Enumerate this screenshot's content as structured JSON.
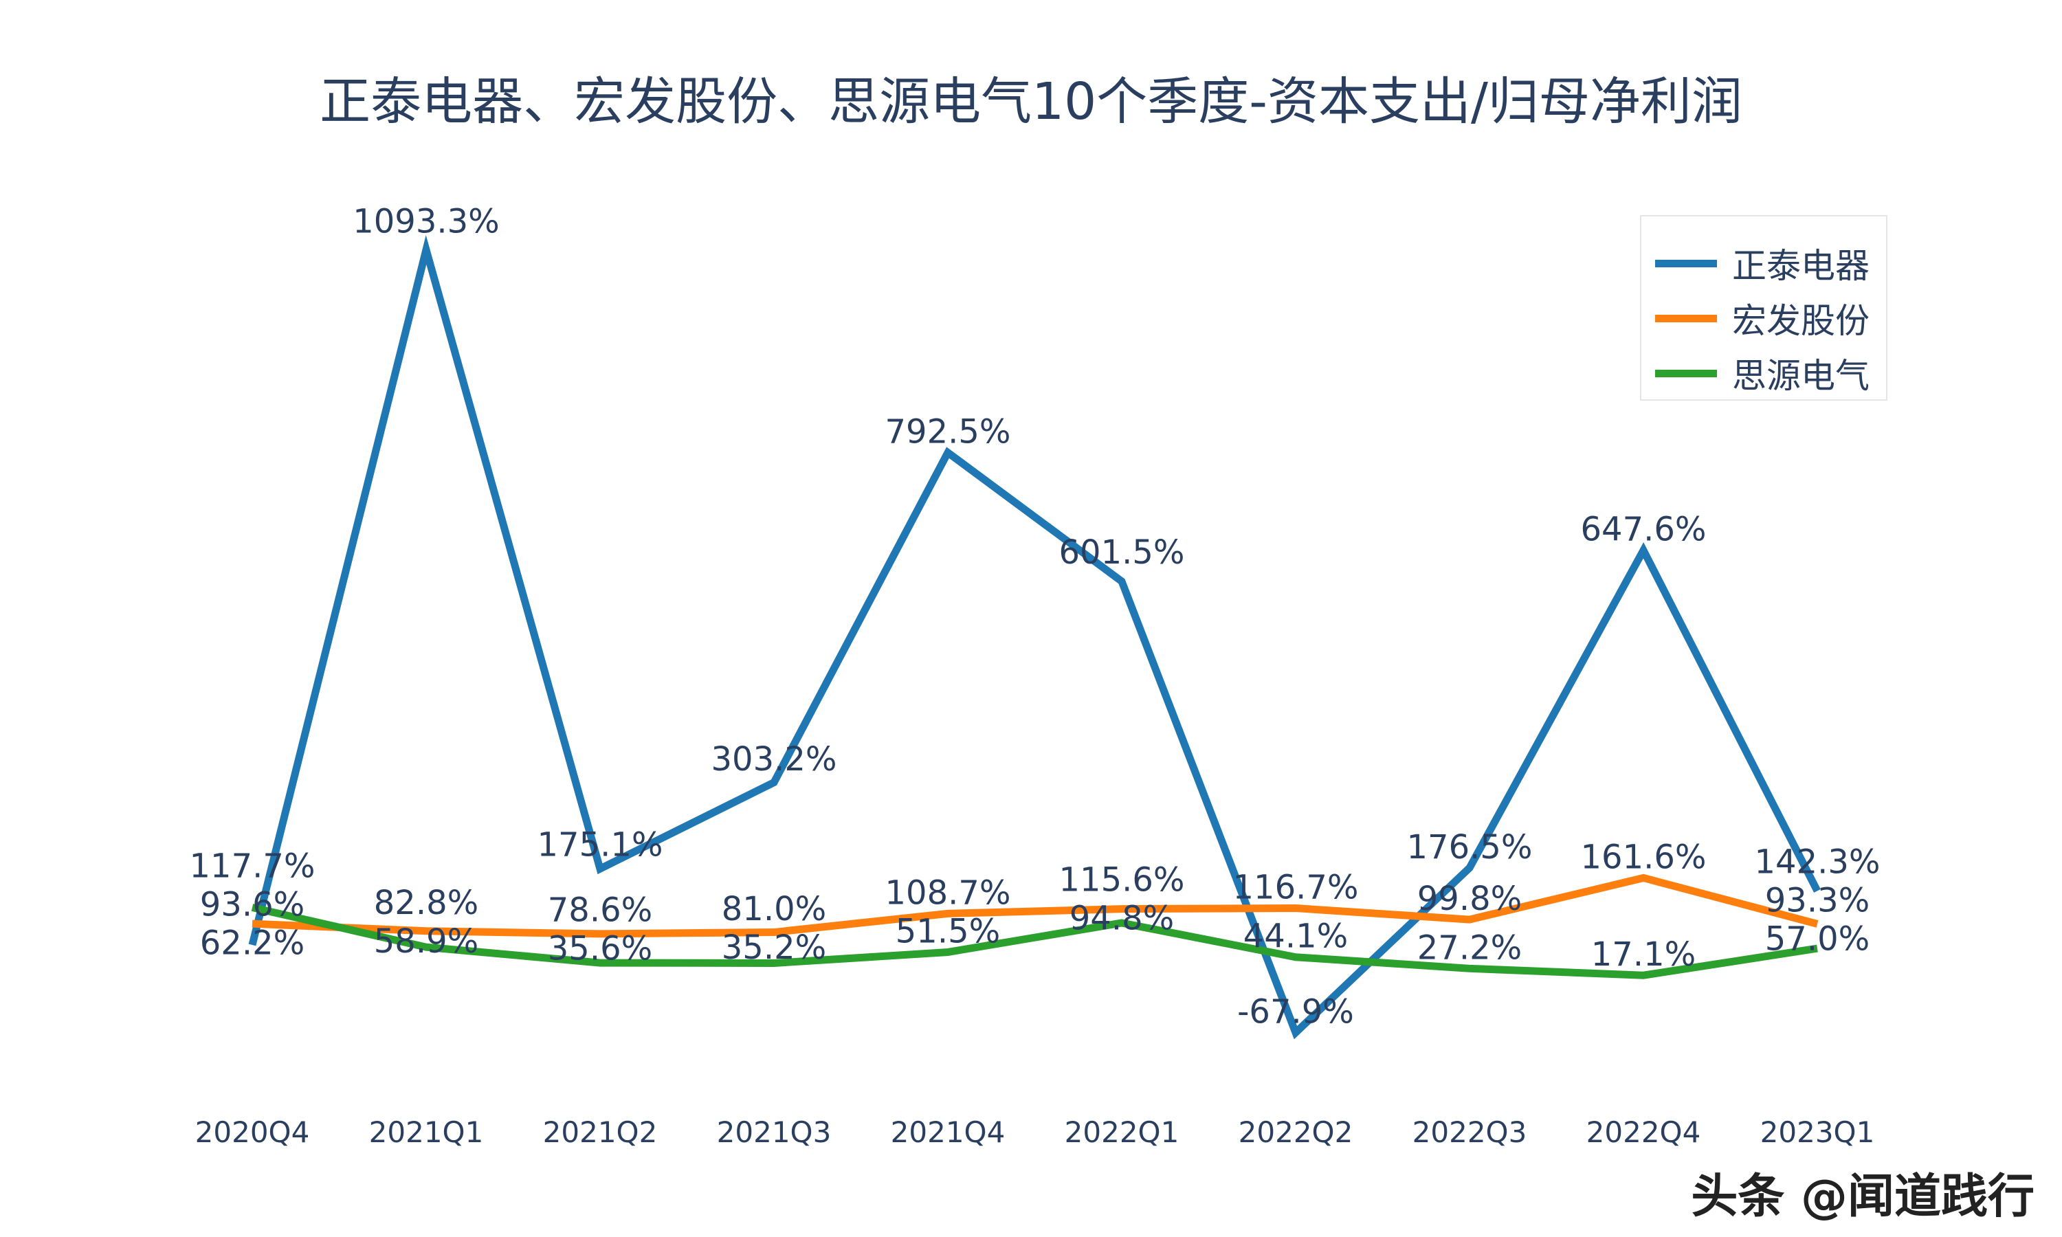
{
  "chart_data": {
    "type": "line",
    "title": "正泰电器、宏发股份、思源电气10个季度-资本支出/归母净利润",
    "categories": [
      "2020Q4",
      "2021Q1",
      "2021Q2",
      "2021Q3",
      "2021Q4",
      "2022Q1",
      "2022Q2",
      "2022Q3",
      "2022Q4",
      "2023Q1"
    ],
    "series": [
      {
        "name": "正泰电器",
        "color": "#1f77b4",
        "values": [
          62.2,
          1093.3,
          175.1,
          303.2,
          792.5,
          601.5,
          -67.9,
          176.5,
          647.6,
          142.3
        ],
        "labels": [
          "62.2%",
          "1093.3%",
          "175.1%",
          "303.2%",
          "792.5%",
          "601.5%",
          "-67.9%",
          "176.5%",
          "647.6%",
          "142.3%"
        ]
      },
      {
        "name": "宏发股份",
        "color": "#ff7f0e",
        "values": [
          93.6,
          82.8,
          78.6,
          81.0,
          108.7,
          115.6,
          116.7,
          99.8,
          161.6,
          93.3
        ],
        "labels": [
          "93.6%",
          "82.8%",
          "78.6%",
          "81.0%",
          "108.7%",
          "115.6%",
          "116.7%",
          "99.8%",
          "161.6%",
          "93.3%"
        ]
      },
      {
        "name": "思源电气",
        "color": "#2ca02c",
        "values": [
          117.7,
          58.9,
          35.6,
          35.2,
          51.5,
          94.8,
          44.1,
          27.2,
          17.1,
          57.0
        ],
        "labels": [
          "117.7%",
          "58.9%",
          "35.6%",
          "35.2%",
          "51.5%",
          "94.8%",
          "44.1%",
          "27.2%",
          "17.1%",
          "57.0%"
        ]
      }
    ],
    "y_unit": "%",
    "grid": false,
    "legend_position": "top-right"
  },
  "watermark": "头条 @闻道践行"
}
